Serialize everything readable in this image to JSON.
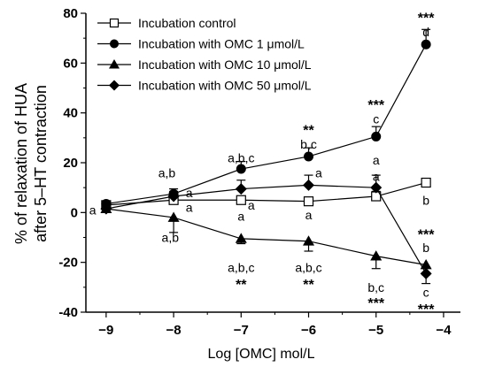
{
  "chart_data": {
    "type": "line",
    "title": "",
    "xlabel": "Log [OMC] mol/L",
    "ylabel_lines": [
      "% of relaxation of HUA",
      "after 5–HT contraction"
    ],
    "xlim": [
      -9.3,
      -3.75
    ],
    "ylim": [
      -40,
      80
    ],
    "xticks": [
      -9,
      -8,
      -7,
      -6,
      -5,
      -4
    ],
    "xtick_labels": [
      "−9",
      "−8",
      "−7",
      "−6",
      "−5",
      "−4"
    ],
    "yticks": [
      -40,
      -20,
      0,
      20,
      40,
      60,
      80
    ],
    "ytick_labels": [
      "-40",
      "-20",
      "0",
      "20",
      "40",
      "60",
      "80"
    ],
    "grid": false,
    "legend_position": "top-left",
    "x": [
      -9,
      -8,
      -7,
      -6,
      -5,
      -4.26
    ],
    "series": [
      {
        "name": "Incubation control",
        "marker": "open-square",
        "values": [
          3,
          5,
          5,
          4.5,
          6.5,
          12
        ],
        "errors": [
          1,
          1,
          1.5,
          1.5,
          2,
          1.5
        ]
      },
      {
        "name": "Incubation with OMC 1 μmol/L",
        "marker": "filled-circle",
        "values": [
          3.5,
          7.5,
          17.5,
          22.5,
          30.5,
          67.5
        ],
        "errors": [
          1,
          2,
          3,
          3.5,
          4,
          6
        ]
      },
      {
        "name": "Incubation with OMC 10 μmol/L",
        "marker": "filled-triangle",
        "values": [
          1.5,
          -2,
          -10.5,
          -11.5,
          -17.5,
          -21
        ],
        "errors": [
          3,
          6,
          2,
          4,
          5,
          4
        ]
      },
      {
        "name": "Incubation with OMC 50 μmol/L",
        "marker": "filled-diamond",
        "values": [
          1.5,
          6.5,
          9.5,
          11,
          10,
          -24.5
        ],
        "errors": [
          2,
          2,
          3.5,
          4,
          5,
          4
        ]
      }
    ],
    "annotations": [
      {
        "text": "a",
        "x": -9.2,
        "y": 1
      },
      {
        "text": "a,b",
        "x": -8.1,
        "y": 16
      },
      {
        "text": "a",
        "x": -7.77,
        "y": 8
      },
      {
        "text": "a",
        "x": -7.77,
        "y": 2
      },
      {
        "text": "a,b",
        "x": -8.05,
        "y": -10
      },
      {
        "text": "a,b,c",
        "x": -7,
        "y": 22
      },
      {
        "text": "a",
        "x": -6.85,
        "y": 3
      },
      {
        "text": "a",
        "x": -7,
        "y": -1.5
      },
      {
        "text": "a,b,c",
        "x": -7,
        "y": -22
      },
      {
        "text": "**",
        "x": -7,
        "y": -29
      },
      {
        "text": "**",
        "x": -6,
        "y": 33
      },
      {
        "text": "b,c",
        "x": -6,
        "y": 27.5
      },
      {
        "text": "a",
        "x": -5.85,
        "y": 16
      },
      {
        "text": "a",
        "x": -6,
        "y": -1
      },
      {
        "text": "a,b,c",
        "x": -6,
        "y": -22
      },
      {
        "text": "**",
        "x": -6,
        "y": -29
      },
      {
        "text": "***",
        "x": -5,
        "y": 43
      },
      {
        "text": "c",
        "x": -5,
        "y": 37.5
      },
      {
        "text": "a",
        "x": -5,
        "y": 21
      },
      {
        "text": "a",
        "x": -5,
        "y": 14.5
      },
      {
        "text": "b,c",
        "x": -5,
        "y": -30
      },
      {
        "text": "***",
        "x": -5,
        "y": -36.5
      },
      {
        "text": "***",
        "x": -4.26,
        "y": 78
      },
      {
        "text": "d",
        "x": -4.26,
        "y": 72.5
      },
      {
        "text": "b",
        "x": -4.26,
        "y": 5
      },
      {
        "text": "***",
        "x": -4.26,
        "y": -9
      },
      {
        "text": "b",
        "x": -4.26,
        "y": -14
      },
      {
        "text": "c",
        "x": -4.26,
        "y": -32
      },
      {
        "text": "***",
        "x": -4.26,
        "y": -39
      }
    ]
  }
}
